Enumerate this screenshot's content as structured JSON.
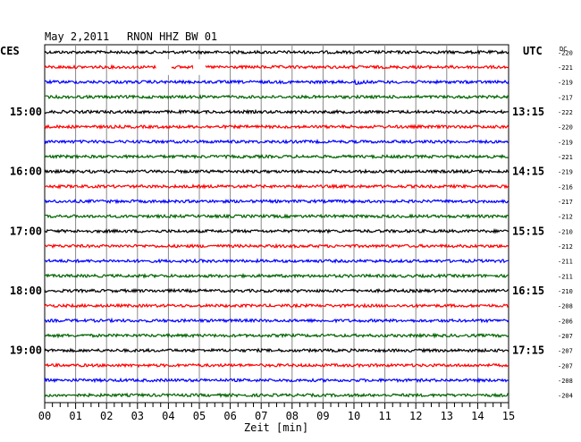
{
  "header": {
    "date": "May 2,2011",
    "station": "RNON HHZ BW 01",
    "left_zone": "CES",
    "right_zone": "UTC",
    "dc_label": "DC"
  },
  "chart_data": {
    "type": "line",
    "title": "May 2,2011   RNON HHZ BW 01",
    "xlabel": "Zeit [min]",
    "x_ticks": [
      "00",
      "01",
      "02",
      "03",
      "04",
      "05",
      "06",
      "07",
      "08",
      "09",
      "10",
      "11",
      "12",
      "13",
      "14",
      "15"
    ],
    "xlim": [
      0,
      15
    ],
    "grid": true,
    "left_time_labels": [
      {
        "row": 4,
        "label": "15:00"
      },
      {
        "row": 8,
        "label": "16:00"
      },
      {
        "row": 12,
        "label": "17:00"
      },
      {
        "row": 16,
        "label": "18:00"
      },
      {
        "row": 20,
        "label": "19:00"
      }
    ],
    "right_time_labels": [
      {
        "row": 4,
        "label": "13:15"
      },
      {
        "row": 8,
        "label": "14:15"
      },
      {
        "row": 12,
        "label": "15:15"
      },
      {
        "row": 16,
        "label": "16:15"
      },
      {
        "row": 20,
        "label": "17:15"
      }
    ],
    "dc_offsets": [
      "-220",
      "-221",
      "-219",
      "-217",
      "-222",
      "-220",
      "-219",
      "-221",
      "-219",
      "-216",
      "-217",
      "-212",
      "-210",
      "-212",
      "-211",
      "-211",
      "-210",
      "-208",
      "-206",
      "-207",
      "-207",
      "-207",
      "-208",
      "-204"
    ],
    "row_colors": [
      "#000000",
      "#ff0000",
      "#0000ff",
      "#006400"
    ],
    "gaps": [
      {
        "row": 1,
        "start_min": 3.6,
        "end_min": 4.1
      },
      {
        "row": 1,
        "start_min": 4.8,
        "end_min": 5.2
      }
    ],
    "events": [
      {
        "row": 2,
        "minute": 10.05,
        "amplitude": 10
      },
      {
        "row": 6,
        "minute": 10.9,
        "amplitude": 3
      },
      {
        "row": 3,
        "minute": 13.5,
        "amplitude": 2
      }
    ]
  }
}
